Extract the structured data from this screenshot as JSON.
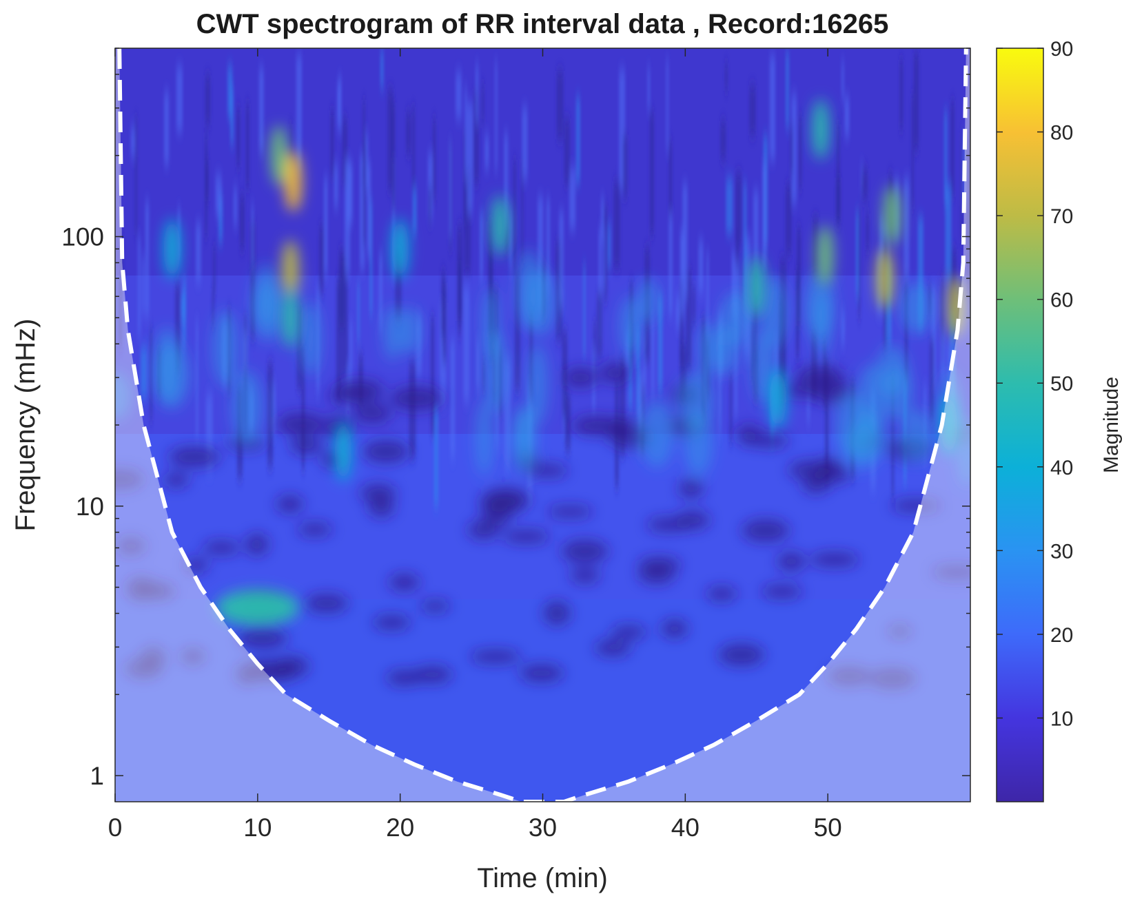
{
  "chart_data": {
    "type": "heatmap",
    "title": "CWT spectrogram of RR interval data , Record:16265",
    "xlabel": "Time (min)",
    "ylabel": "Frequency (mHz)",
    "xlim": [
      0,
      60
    ],
    "ylim": [
      0.8,
      500
    ],
    "yscale": "log",
    "x_ticks": [
      0,
      10,
      20,
      30,
      40,
      50
    ],
    "x_tick_labels": [
      "0",
      "10",
      "20",
      "30",
      "40",
      "50"
    ],
    "y_ticks": [
      1,
      10,
      100
    ],
    "y_tick_labels": [
      "1",
      "10",
      "100"
    ],
    "colorbar": {
      "label": "Magnitude",
      "range": [
        0,
        90
      ],
      "ticks": [
        10,
        20,
        30,
        40,
        50,
        60,
        70,
        80,
        90
      ],
      "tick_labels": [
        "10",
        "20",
        "30",
        "40",
        "50",
        "60",
        "70",
        "80",
        "90"
      ],
      "colormap": [
        "#3e26a8",
        "#4435df",
        "#3e6afa",
        "#2a93f2",
        "#0cb0d8",
        "#2dbcae",
        "#6ebf79",
        "#bdbb46",
        "#f7c034",
        "#f9fb0e"
      ]
    },
    "cone_of_influence": {
      "style": "dashed white",
      "min_frequency_at": 30,
      "points": [
        {
          "t": 0.3,
          "f": 500
        },
        {
          "t": 0.5,
          "f": 80
        },
        {
          "t": 0.9,
          "f": 45
        },
        {
          "t": 2,
          "f": 20
        },
        {
          "t": 4,
          "f": 8
        },
        {
          "t": 6,
          "f": 5
        },
        {
          "t": 8,
          "f": 3.5
        },
        {
          "t": 10,
          "f": 2.6
        },
        {
          "t": 12,
          "f": 2
        },
        {
          "t": 15,
          "f": 1.6
        },
        {
          "t": 18,
          "f": 1.3
        },
        {
          "t": 21,
          "f": 1.1
        },
        {
          "t": 24,
          "f": 0.95
        },
        {
          "t": 27,
          "f": 0.85
        },
        {
          "t": 28.5,
          "f": 0.8
        },
        {
          "t": 31.5,
          "f": 0.8
        },
        {
          "t": 33,
          "f": 0.85
        },
        {
          "t": 36,
          "f": 0.95
        },
        {
          "t": 39,
          "f": 1.1
        },
        {
          "t": 42,
          "f": 1.3
        },
        {
          "t": 45,
          "f": 1.6
        },
        {
          "t": 48,
          "f": 2
        },
        {
          "t": 50,
          "f": 2.6
        },
        {
          "t": 52,
          "f": 3.5
        },
        {
          "t": 54,
          "f": 5
        },
        {
          "t": 56,
          "f": 8
        },
        {
          "t": 58,
          "f": 20
        },
        {
          "t": 59.1,
          "f": 45
        },
        {
          "t": 59.5,
          "f": 80
        },
        {
          "t": 59.7,
          "f": 500
        }
      ]
    },
    "hotspots": [
      {
        "t": 12.5,
        "f": 160,
        "magnitude": 75
      },
      {
        "t": 12.3,
        "f": 75,
        "magnitude": 68
      },
      {
        "t": 12.3,
        "f": 50,
        "magnitude": 45
      },
      {
        "t": 11.5,
        "f": 200,
        "magnitude": 55
      },
      {
        "t": 16.0,
        "f": 16,
        "magnitude": 35
      },
      {
        "t": 10.0,
        "f": 4.2,
        "magnitude": 50
      },
      {
        "t": 27.0,
        "f": 110,
        "magnitude": 45
      },
      {
        "t": 20.0,
        "f": 90,
        "magnitude": 38
      },
      {
        "t": 49.8,
        "f": 85,
        "magnitude": 60
      },
      {
        "t": 49.5,
        "f": 250,
        "magnitude": 45
      },
      {
        "t": 54.0,
        "f": 70,
        "magnitude": 72
      },
      {
        "t": 54.5,
        "f": 120,
        "magnitude": 55
      },
      {
        "t": 59.0,
        "f": 55,
        "magnitude": 72
      },
      {
        "t": 4.0,
        "f": 90,
        "magnitude": 40
      },
      {
        "t": 45.0,
        "f": 65,
        "magnitude": 45
      },
      {
        "t": 46.5,
        "f": 25,
        "magnitude": 38
      },
      {
        "t": 58.5,
        "f": 20,
        "magnitude": 38
      }
    ]
  }
}
